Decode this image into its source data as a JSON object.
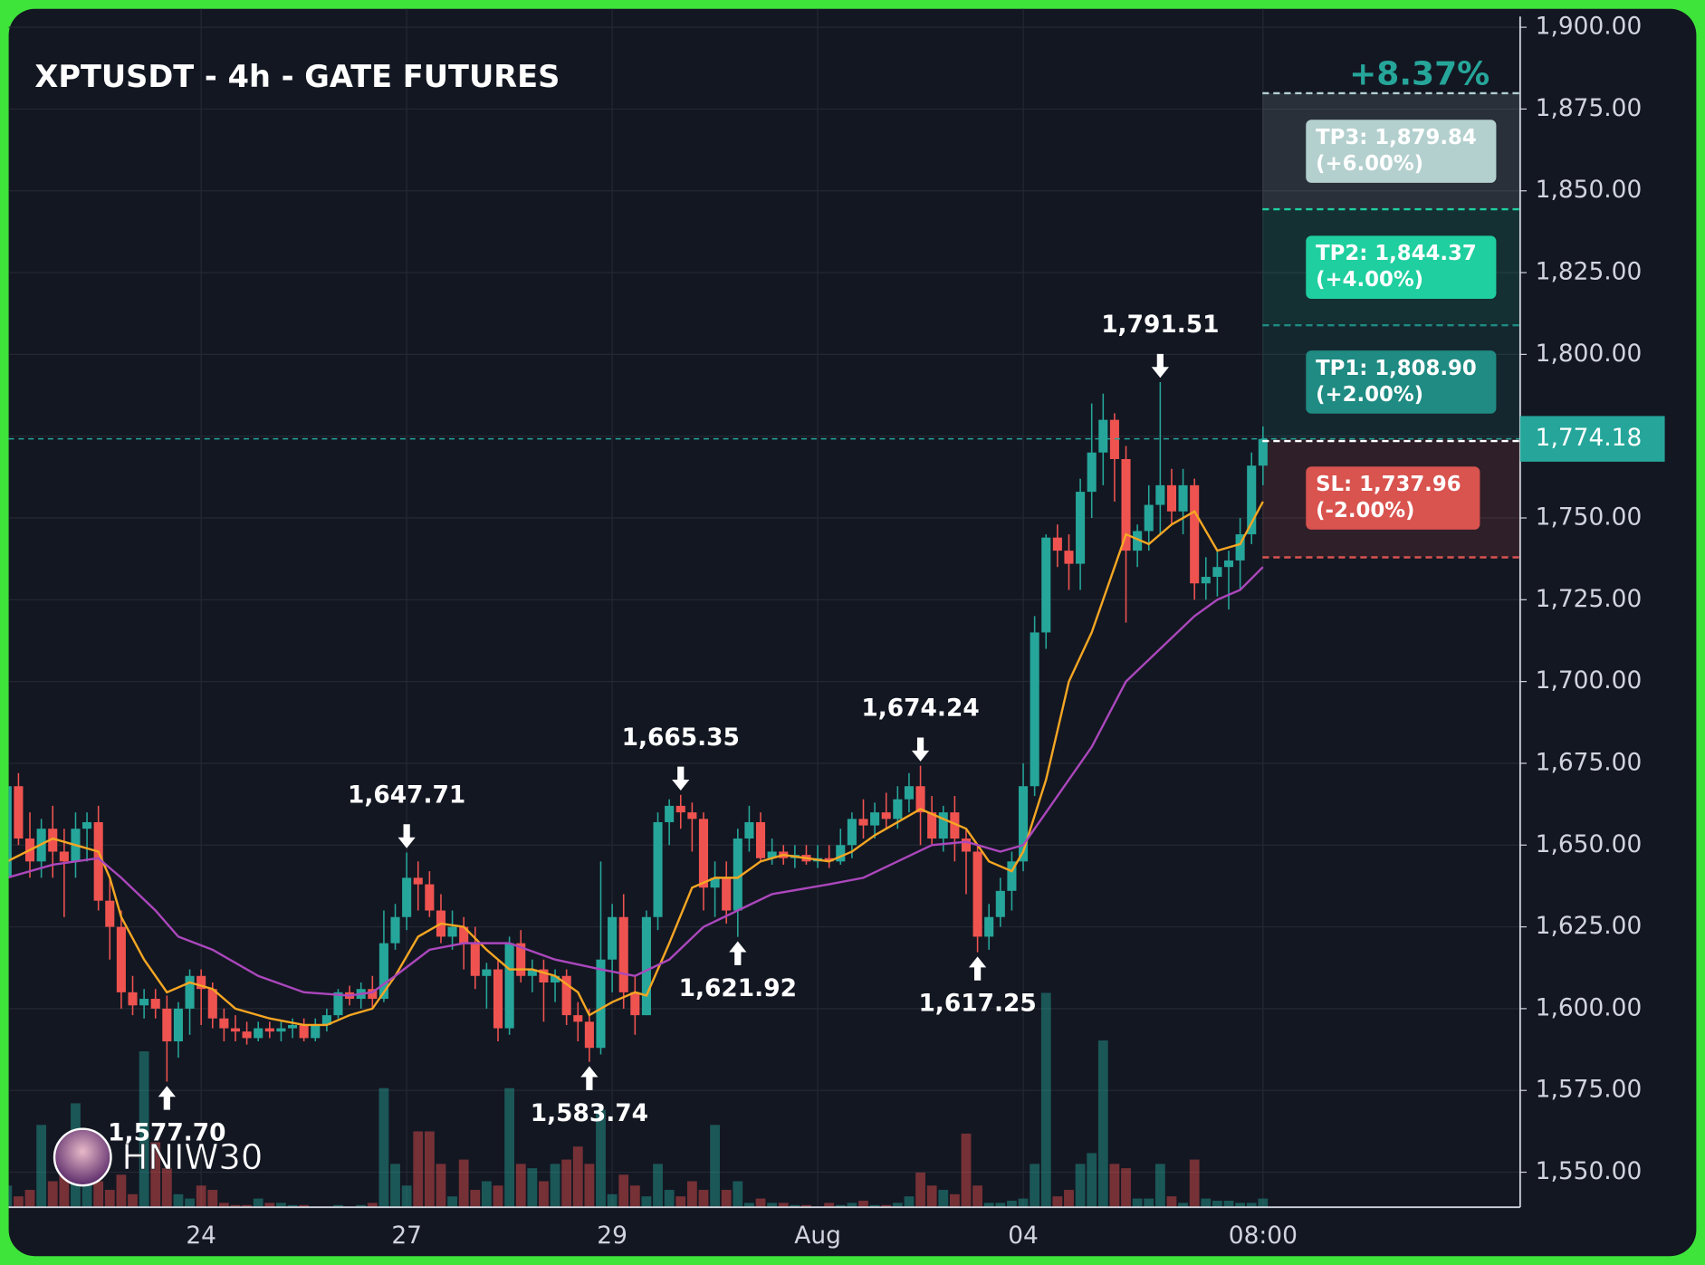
{
  "chart_data": {
    "type": "candlestick",
    "title": "XPTUSDT - 4h - GATE FUTURES",
    "watermark": "HNIW30",
    "categories": [
      null,
      null,
      null,
      null,
      null,
      null,
      null,
      null,
      null,
      null,
      null,
      null,
      null,
      null,
      null,
      null,
      null,
      "24",
      null,
      null,
      null,
      null,
      null,
      null,
      null,
      null,
      null,
      null,
      null,
      null,
      null,
      null,
      null,
      null,
      null,
      "27",
      null,
      null,
      null,
      null,
      null,
      null,
      null,
      null,
      null,
      null,
      null,
      null,
      null,
      null,
      null,
      null,
      null,
      "29",
      null,
      null,
      null,
      null,
      null,
      null,
      null,
      null,
      null,
      null,
      null,
      null,
      null,
      null,
      null,
      null,
      null,
      "Aug",
      null,
      null,
      null,
      null,
      null,
      null,
      null,
      null,
      null,
      null,
      null,
      null,
      null,
      null,
      null,
      null,
      null,
      "04",
      null,
      null,
      null,
      null,
      null,
      null,
      null,
      null,
      null,
      null,
      null,
      null,
      null,
      null,
      null,
      null,
      null,
      null,
      null,
      null,
      "08:00"
    ],
    "open": [
      1640,
      1668,
      1652,
      1645,
      1655,
      1648,
      1645,
      1655,
      1657,
      1633,
      1625,
      1605,
      1601,
      1603,
      1600,
      1590,
      1600,
      1610,
      1606,
      1597,
      1594,
      1593,
      1591,
      1594,
      1593,
      1594,
      1595,
      1591,
      1595,
      1598,
      1605,
      1603,
      1606,
      1603,
      1620,
      1628,
      1640,
      1638,
      1630,
      1622,
      1625,
      1620,
      1610,
      1612,
      1594,
      1620,
      1610,
      1612,
      1608,
      1610,
      1598,
      1596,
      1588,
      1615,
      1628,
      1605,
      1598,
      1628,
      1657,
      1662,
      1660,
      1658,
      1637,
      1640,
      1630,
      1652,
      1657,
      1646,
      1648,
      1646,
      1647,
      1645,
      1646,
      1645,
      1650,
      1658,
      1656,
      1660,
      1658,
      1664,
      1668,
      1660,
      1652,
      1660,
      1652,
      1648,
      1622,
      1628,
      1636,
      1645,
      1668,
      1715,
      1744,
      1740,
      1736,
      1758,
      1770,
      1780,
      1768,
      1740,
      1746,
      1754,
      1760,
      1752,
      1760,
      1730,
      1732,
      1735,
      1737,
      1745,
      1766
    ],
    "high": [
      1672,
      1672,
      1660,
      1658,
      1662,
      1655,
      1660,
      1660,
      1662,
      1640,
      1630,
      1610,
      1606,
      1606,
      1604,
      1602,
      1612,
      1612,
      1608,
      1600,
      1598,
      1596,
      1596,
      1596,
      1596,
      1597,
      1597,
      1597,
      1600,
      1606,
      1607,
      1608,
      1610,
      1630,
      1632,
      1647.71,
      1645,
      1642,
      1635,
      1630,
      1628,
      1625,
      1614,
      1615,
      1622,
      1624,
      1615,
      1615,
      1612,
      1612,
      1602,
      1600,
      1645,
      1632,
      1635,
      1610,
      1630,
      1660,
      1664,
      1665.35,
      1663,
      1660,
      1645,
      1645,
      1655,
      1662,
      1660,
      1652,
      1650,
      1650,
      1650,
      1650,
      1650,
      1655,
      1660,
      1664,
      1663,
      1666,
      1668,
      1672,
      1674.24,
      1665,
      1662,
      1665,
      1655,
      1650,
      1632,
      1640,
      1648,
      1675,
      1720,
      1745,
      1748,
      1745,
      1762,
      1785,
      1788,
      1782,
      1772,
      1748,
      1760,
      1791.51,
      1765,
      1765,
      1762,
      1738,
      1740,
      1740,
      1750,
      1770,
      1778
    ],
    "low": [
      1635,
      1650,
      1640,
      1640,
      1640,
      1628,
      1640,
      1645,
      1630,
      1615,
      1600,
      1598,
      1597,
      1597,
      1577.7,
      1585,
      1592,
      1595,
      1594,
      1590,
      1590,
      1589,
      1590,
      1591,
      1590,
      1591,
      1590,
      1590,
      1593,
      1597,
      1601,
      1600,
      1600,
      1602,
      1618,
      1624,
      1630,
      1628,
      1620,
      1618,
      1612,
      1606,
      1600,
      1590,
      1592,
      1608,
      1605,
      1596,
      1602,
      1595,
      1590,
      1583.74,
      1586,
      1605,
      1600,
      1592,
      1598,
      1624,
      1650,
      1655,
      1648,
      1630,
      1628,
      1626,
      1621.92,
      1648,
      1645,
      1644,
      1644,
      1643,
      1644,
      1643,
      1643,
      1644,
      1646,
      1652,
      1652,
      1655,
      1655,
      1660,
      1650,
      1650,
      1648,
      1645,
      1635,
      1617.25,
      1618,
      1625,
      1630,
      1642,
      1665,
      1710,
      1735,
      1728,
      1728,
      1750,
      1760,
      1755,
      1718,
      1735,
      1740,
      1745,
      1748,
      1745,
      1725,
      1725,
      1726,
      1722,
      1728,
      1742,
      1760
    ],
    "close": [
      1668,
      1652,
      1645,
      1655,
      1648,
      1645,
      1655,
      1657,
      1633,
      1625,
      1605,
      1601,
      1603,
      1600,
      1590,
      1600,
      1610,
      1606,
      1597,
      1594,
      1593,
      1591,
      1594,
      1593,
      1594,
      1595,
      1591,
      1595,
      1598,
      1605,
      1603,
      1606,
      1603,
      1620,
      1628,
      1640,
      1638,
      1630,
      1622,
      1625,
      1620,
      1610,
      1612,
      1594,
      1620,
      1610,
      1612,
      1608,
      1610,
      1598,
      1596,
      1588,
      1615,
      1628,
      1605,
      1598,
      1628,
      1657,
      1662,
      1660,
      1658,
      1637,
      1640,
      1630,
      1652,
      1657,
      1646,
      1648,
      1646,
      1647,
      1645,
      1646,
      1645,
      1650,
      1658,
      1656,
      1660,
      1658,
      1664,
      1668,
      1660,
      1652,
      1660,
      1652,
      1648,
      1622,
      1628,
      1636,
      1645,
      1668,
      1715,
      1744,
      1740,
      1736,
      1758,
      1770,
      1780,
      1768,
      1740,
      1746,
      1754,
      1760,
      1752,
      1760,
      1730,
      1732,
      1735,
      1737,
      1745,
      1766,
      1774.18
    ],
    "up_color": "#26a69a",
    "down_color": "#ef5350",
    "volume": {
      "ylim": [
        0,
        550
      ],
      "values": [
        10,
        5,
        8,
        38,
        12,
        25,
        48,
        22,
        12,
        8,
        15,
        6,
        72,
        30,
        18,
        6,
        4,
        10,
        8,
        2,
        1,
        1,
        4,
        2,
        2,
        1,
        1,
        0,
        0,
        1,
        0,
        1,
        2,
        55,
        20,
        10,
        35,
        35,
        20,
        5,
        22,
        8,
        12,
        10,
        55,
        20,
        18,
        12,
        20,
        22,
        28,
        20,
        45,
        6,
        15,
        10,
        5,
        20,
        8,
        5,
        12,
        8,
        38,
        8,
        12,
        2,
        4,
        2,
        2,
        1,
        1,
        0,
        2,
        1,
        2,
        3,
        1,
        1,
        2,
        5,
        16,
        10,
        8,
        6,
        34,
        10,
        2,
        2,
        3,
        4,
        20,
        99,
        5,
        8,
        20,
        25,
        77,
        20,
        18,
        4,
        4,
        20,
        5,
        2,
        22,
        4,
        3,
        3,
        2,
        2,
        4
      ]
    },
    "moving_averages": [
      {
        "color": "#f5a623",
        "x": [
          0,
          4,
          8,
          9,
          10,
          12,
          14,
          16,
          18,
          20,
          23,
          26,
          28,
          30,
          32,
          34,
          36,
          38,
          40,
          42,
          44,
          46,
          48,
          50,
          51,
          53,
          55,
          56,
          58,
          60,
          62,
          64,
          66,
          68,
          70,
          72,
          74,
          76,
          78,
          80,
          82,
          84,
          86,
          88,
          89,
          91,
          93,
          95,
          97,
          98,
          100,
          102,
          104,
          106,
          108,
          110
        ],
        "values": [
          1645,
          1652,
          1648,
          1640,
          1628,
          1615,
          1605,
          1608,
          1606,
          1600,
          1597,
          1595,
          1595,
          1598,
          1600,
          1610,
          1622,
          1626,
          1625,
          1618,
          1612,
          1612,
          1610,
          1605,
          1598,
          1602,
          1605,
          1604,
          1620,
          1637,
          1640,
          1640,
          1645,
          1647,
          1646,
          1645,
          1648,
          1653,
          1657,
          1661,
          1658,
          1655,
          1645,
          1642,
          1648,
          1670,
          1700,
          1715,
          1735,
          1745,
          1742,
          1748,
          1752,
          1740,
          1742,
          1755
        ]
      },
      {
        "color": "#ab47bc",
        "x": [
          0,
          4,
          8,
          10,
          13,
          15,
          18,
          22,
          26,
          30,
          32,
          34,
          37,
          40,
          44,
          48,
          52,
          55,
          58,
          61,
          64,
          67,
          72,
          75,
          78,
          81,
          84,
          87,
          89,
          92,
          95,
          98,
          101,
          104,
          106,
          108,
          110
        ],
        "values": [
          1640,
          1644,
          1646,
          1640,
          1630,
          1622,
          1618,
          1610,
          1605,
          1604,
          1605,
          1610,
          1618,
          1620,
          1620,
          1615,
          1612,
          1610,
          1615,
          1625,
          1630,
          1635,
          1638,
          1640,
          1645,
          1650,
          1651,
          1648,
          1650,
          1665,
          1680,
          1700,
          1710,
          1720,
          1725,
          1728,
          1735
        ]
      }
    ],
    "extremes": [
      {
        "candle": 14,
        "type": "low",
        "value": 1577.7,
        "label": "1,577.70"
      },
      {
        "candle": 35,
        "type": "high",
        "value": 1647.71,
        "label": "1,647.71"
      },
      {
        "candle": 51,
        "type": "low",
        "value": 1583.74,
        "label": "1,583.74"
      },
      {
        "candle": 59,
        "type": "high",
        "value": 1665.35,
        "label": "1,665.35"
      },
      {
        "candle": 64,
        "type": "low",
        "value": 1621.92,
        "label": "1,621.92"
      },
      {
        "candle": 80,
        "type": "high",
        "value": 1674.24,
        "label": "1,674.24"
      },
      {
        "candle": 85,
        "type": "low",
        "value": 1617.25,
        "label": "1,617.25"
      },
      {
        "candle": 101,
        "type": "high",
        "value": 1791.51,
        "label": "1,791.51"
      }
    ],
    "last_price": {
      "value": 1774.18,
      "label": "1,774.18",
      "color": "#26a69a"
    },
    "trade": {
      "total_change": "+8.37%",
      "levels": [
        {
          "value": 1879.84,
          "label": "TP3: 1,879.84",
          "change": "(+6.00%)",
          "color": "#b3d0ce"
        },
        {
          "value": 1844.37,
          "label": "TP2: 1,844.37",
          "change": "(+4.00%)",
          "color": "#1fcf9f"
        },
        {
          "value": 1808.9,
          "label": "TP1: 1,808.90",
          "change": "(+2.00%)",
          "color": "#1f8b82"
        },
        {
          "value": 1737.96,
          "label": "SL: 1,737.96",
          "change": "(-2.00%)",
          "color": "#d9534f"
        }
      ]
    },
    "ylim": [
      1539.3,
      1903.3
    ],
    "yticks": [
      {
        "value": 1550,
        "label": "1,550.00"
      },
      {
        "value": 1575,
        "label": "1,575.00"
      },
      {
        "value": 1600,
        "label": "1,600.00"
      },
      {
        "value": 1625,
        "label": "1,625.00"
      },
      {
        "value": 1650,
        "label": "1,650.00"
      },
      {
        "value": 1675,
        "label": "1,675.00"
      },
      {
        "value": 1700,
        "label": "1,700.00"
      },
      {
        "value": 1725,
        "label": "1,725.00"
      },
      {
        "value": 1750,
        "label": "1,750.00"
      },
      {
        "value": 1775,
        "label": "1,775.00"
      },
      {
        "value": 1800,
        "label": "1,800.00"
      },
      {
        "value": 1825,
        "label": "1,825.00"
      },
      {
        "value": 1850,
        "label": "1,850.00"
      },
      {
        "value": 1875,
        "label": "1,875.00"
      },
      {
        "value": 1900,
        "label": "1,900.00"
      }
    ],
    "grid": true
  }
}
